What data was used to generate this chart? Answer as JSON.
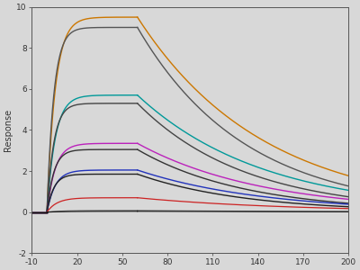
{
  "title": "",
  "xlabel": "",
  "ylabel": "Response",
  "xlim": [
    -10,
    200
  ],
  "ylim": [
    -2,
    10
  ],
  "xticks": [
    -10,
    20,
    50,
    80,
    110,
    140,
    170,
    200
  ],
  "yticks": [
    -2,
    0,
    2,
    4,
    6,
    8,
    10
  ],
  "t_start": -10,
  "t_assoc_start": 0,
  "t_assoc_end": 60,
  "t_dissoc_end": 200,
  "background_color": "#d8d8d8",
  "curves": [
    {
      "peak": 9.5,
      "ka": 0.18,
      "kd": 0.012,
      "color": "#CC7700",
      "lw": 1.0
    },
    {
      "peak": 9.0,
      "ka": 0.22,
      "kd": 0.014,
      "color": "#555555",
      "lw": 1.0
    },
    {
      "peak": 5.7,
      "ka": 0.18,
      "kd": 0.012,
      "color": "#009999",
      "lw": 1.0
    },
    {
      "peak": 5.3,
      "ka": 0.22,
      "kd": 0.014,
      "color": "#444444",
      "lw": 1.0
    },
    {
      "peak": 3.35,
      "ka": 0.18,
      "kd": 0.012,
      "color": "#BB22BB",
      "lw": 1.0
    },
    {
      "peak": 3.05,
      "ka": 0.22,
      "kd": 0.014,
      "color": "#333333",
      "lw": 1.0
    },
    {
      "peak": 2.05,
      "ka": 0.18,
      "kd": 0.012,
      "color": "#2233BB",
      "lw": 1.0
    },
    {
      "peak": 1.85,
      "ka": 0.22,
      "kd": 0.014,
      "color": "#222222",
      "lw": 1.0
    },
    {
      "peak": 0.7,
      "ka": 0.15,
      "kd": 0.01,
      "color": "#CC2222",
      "lw": 0.9
    },
    {
      "peak": 0.08,
      "ka": 0.1,
      "kd": 0.008,
      "color": "#666666",
      "lw": 0.8
    },
    {
      "peak": 0.04,
      "ka": 0.08,
      "kd": 0.006,
      "color": "#111111",
      "lw": 0.8
    }
  ]
}
